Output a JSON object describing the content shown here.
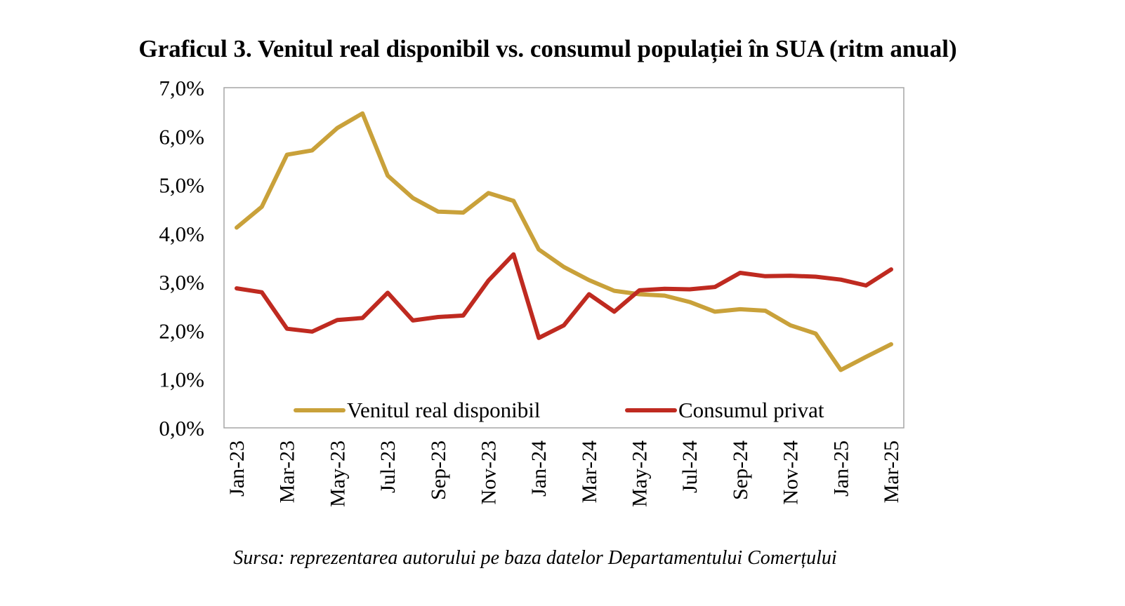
{
  "title": "Graficul 3. Venitul real disponibil vs. consumul populației în SUA (ritm anual)",
  "source": "Sursa: reprezentarea autorului pe baza datelor Departamentului Comerțului",
  "chart_data": {
    "type": "line",
    "title": "Graficul 3. Venitul real disponibil vs. consumul populației în SUA (ritm anual)",
    "xlabel": "",
    "ylabel": "",
    "ylim": [
      0,
      7
    ],
    "y_ticks": [
      0,
      1,
      2,
      3,
      4,
      5,
      6,
      7
    ],
    "y_tick_labels": [
      "0,0%",
      "1,0%",
      "2,0%",
      "3,0%",
      "4,0%",
      "5,0%",
      "6,0%",
      "7,0%"
    ],
    "x": [
      "Jan-23",
      "Feb-23",
      "Mar-23",
      "Apr-23",
      "May-23",
      "Jun-23",
      "Jul-23",
      "Aug-23",
      "Sep-23",
      "Oct-23",
      "Nov-23",
      "Dec-23",
      "Jan-24",
      "Feb-24",
      "Mar-24",
      "Apr-24",
      "May-24",
      "Jun-24",
      "Jul-24",
      "Aug-24",
      "Sep-24",
      "Oct-24",
      "Nov-24",
      "Dec-24",
      "Jan-25",
      "Feb-25",
      "Mar-25"
    ],
    "x_tick_labels": [
      "Jan-23",
      "Mar-23",
      "May-23",
      "Jul-23",
      "Sep-23",
      "Nov-23",
      "Jan-24",
      "Mar-24",
      "May-24",
      "Jul-24",
      "Sep-24",
      "Nov-24",
      "Jan-25",
      "Mar-25"
    ],
    "grid": false,
    "legend_position": "bottom-inside",
    "series": [
      {
        "name": "Venitul real disponibil",
        "color": "#C9A13A",
        "values": [
          4.12,
          4.55,
          5.62,
          5.71,
          6.17,
          6.47,
          5.19,
          4.73,
          4.45,
          4.43,
          4.83,
          4.67,
          3.67,
          3.31,
          3.04,
          2.82,
          2.75,
          2.72,
          2.59,
          2.39,
          2.44,
          2.41,
          2.11,
          1.94,
          1.19,
          1.46,
          1.72
        ]
      },
      {
        "name": "Consumul privat",
        "color": "#BF2A20",
        "values": [
          2.87,
          2.79,
          2.04,
          1.98,
          2.22,
          2.26,
          2.78,
          2.21,
          2.28,
          2.31,
          3.03,
          3.57,
          1.85,
          2.11,
          2.75,
          2.39,
          2.83,
          2.86,
          2.85,
          2.9,
          3.19,
          3.12,
          3.13,
          3.11,
          3.05,
          2.93,
          3.26
        ]
      }
    ]
  }
}
